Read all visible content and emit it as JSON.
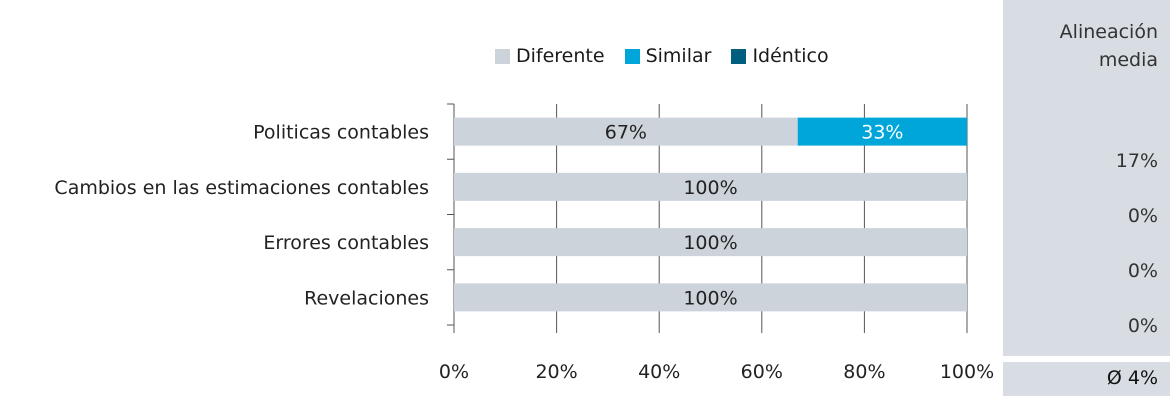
{
  "legend": {
    "items": [
      {
        "label": "Diferente",
        "color": "#ccd3db"
      },
      {
        "label": "Similar",
        "color": "#00a6da"
      },
      {
        "label": "Idéntico",
        "color": "#005f7f"
      }
    ]
  },
  "side_panel": {
    "title": "Alineación media",
    "values": [
      "17%",
      "0%",
      "0%",
      "0%"
    ],
    "average": "Ø  4%"
  },
  "chart_data": {
    "type": "bar",
    "orientation": "horizontal",
    "stacked": true,
    "categories": [
      "Politicas contables",
      "Cambios en las estimaciones contables",
      "Errores contables",
      "Revelaciones"
    ],
    "series": [
      {
        "name": "Diferente",
        "color": "#ccd3db",
        "values": [
          67,
          100,
          100,
          100
        ],
        "labels": [
          "67%",
          "100%",
          "100%",
          "100%"
        ]
      },
      {
        "name": "Similar",
        "color": "#00a6da",
        "values": [
          33,
          0,
          0,
          0
        ],
        "labels": [
          "33%",
          "",
          "",
          ""
        ]
      },
      {
        "name": "Idéntico",
        "color": "#005f7f",
        "values": [
          0,
          0,
          0,
          0
        ],
        "labels": [
          "",
          "",
          "",
          ""
        ]
      }
    ],
    "xlim": [
      0,
      100
    ],
    "xticks": [
      "0%",
      "20%",
      "40%",
      "60%",
      "80%",
      "100%"
    ],
    "grid": true,
    "legend_position": "top"
  }
}
